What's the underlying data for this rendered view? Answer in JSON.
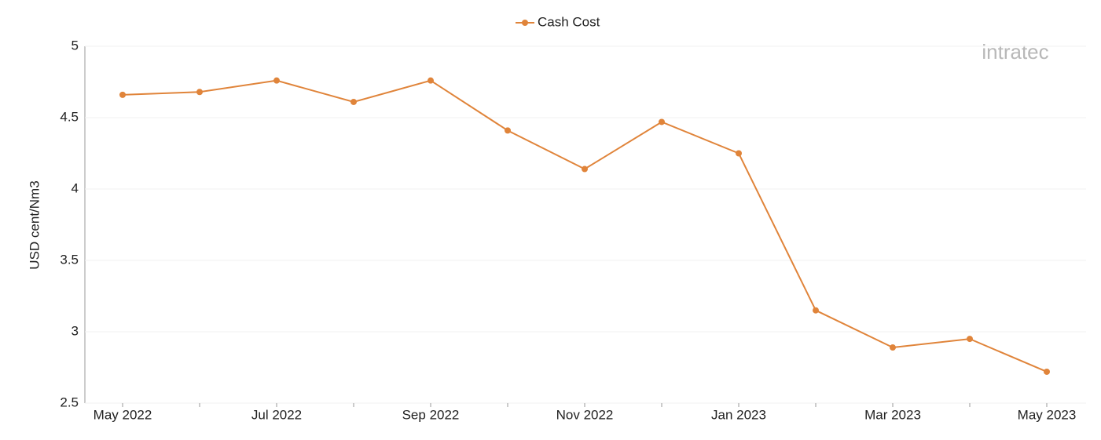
{
  "chart_data": {
    "type": "line",
    "y_label": "USD cent/Nm3",
    "categories": [
      "May 2022",
      null,
      "Jul 2022",
      null,
      "Sep 2022",
      null,
      "Nov 2022",
      null,
      "Jan 2023",
      null,
      "Mar 2023",
      null,
      "May 2023"
    ],
    "series": [
      {
        "name": "Cash Cost",
        "color": "#e0843a",
        "values": [
          4.66,
          4.68,
          4.76,
          4.61,
          4.76,
          4.41,
          4.14,
          4.47,
          4.25,
          3.15,
          2.89,
          2.95,
          2.72
        ]
      }
    ],
    "ylim": [
      2.5,
      5
    ],
    "yticks": [
      2.5,
      3,
      3.5,
      4,
      4.5,
      5
    ],
    "grid": true,
    "legend": "top"
  },
  "logo": "intratec"
}
